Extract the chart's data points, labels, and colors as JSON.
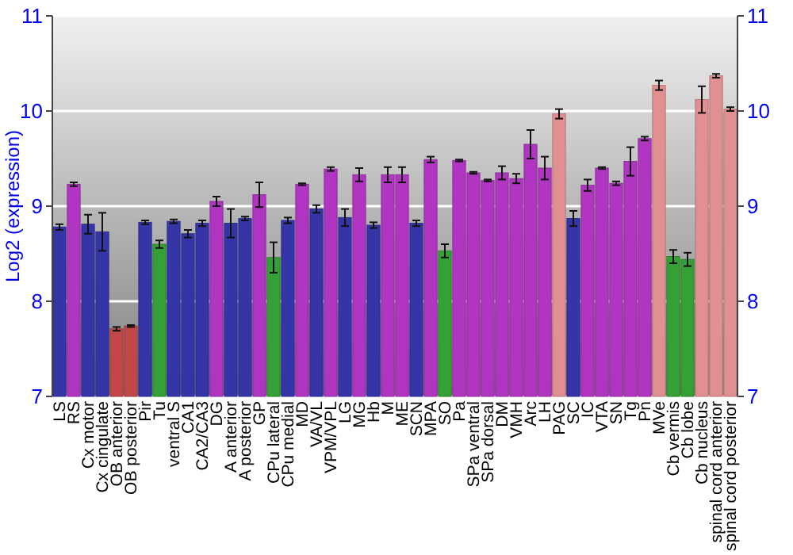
{
  "chart_data": {
    "type": "bar",
    "ylabel": "Log2 (expression)",
    "categories": [
      "LS",
      "RS",
      "Cx motor",
      "Cx cingulate",
      "OB anterior",
      "OB posterior",
      "Pir",
      "Tu",
      "ventral S",
      "CA1",
      "CA2/CA3",
      "DG",
      "A anterior",
      "A posterior",
      "GP",
      "CPu lateral",
      "CPu medial",
      "MD",
      "VA/VL",
      "VPM/VPL",
      "LG",
      "MG",
      "Hb",
      "M",
      "ME",
      "SCN",
      "MPA",
      "SO",
      "Pa",
      "SPa ventral",
      "SPa dorsal",
      "DM",
      "VMH",
      "Arc",
      "LH",
      "PAG",
      "SC",
      "IC",
      "VTA",
      "SN",
      "Tg",
      "Pn",
      "MVe",
      "Cb vermis",
      "Cb lobe",
      "Cb nucleus",
      "spinal cord anterior",
      "spinal cord posterior"
    ],
    "values": [
      8.78,
      9.23,
      8.81,
      8.73,
      7.71,
      7.74,
      8.83,
      8.6,
      8.84,
      8.71,
      8.82,
      9.05,
      8.82,
      8.87,
      9.12,
      8.46,
      8.85,
      9.23,
      8.97,
      9.39,
      8.88,
      9.33,
      8.8,
      9.33,
      9.33,
      8.82,
      9.49,
      8.53,
      9.48,
      9.35,
      9.27,
      9.35,
      9.29,
      9.65,
      9.4,
      9.97,
      8.87,
      9.22,
      9.4,
      9.24,
      9.47,
      9.71,
      10.27,
      8.47,
      8.44,
      10.12,
      10.37,
      10.02
    ],
    "errors": [
      0.03,
      0.02,
      0.1,
      0.2,
      0.02,
      0.01,
      0.02,
      0.04,
      0.02,
      0.04,
      0.03,
      0.05,
      0.15,
      0.02,
      0.13,
      0.16,
      0.03,
      0.01,
      0.04,
      0.02,
      0.09,
      0.07,
      0.03,
      0.08,
      0.08,
      0.03,
      0.03,
      0.07,
      0.01,
      0.01,
      0.01,
      0.07,
      0.05,
      0.15,
      0.12,
      0.05,
      0.08,
      0.06,
      0.01,
      0.02,
      0.15,
      0.02,
      0.05,
      0.07,
      0.07,
      0.14,
      0.02,
      0.02
    ],
    "colors": [
      "#3535a8",
      "#b035c0",
      "#3535a8",
      "#3535a8",
      "#c04848",
      "#c04848",
      "#3535a8",
      "#35a035",
      "#3535a8",
      "#3535a8",
      "#3535a8",
      "#b035c0",
      "#3535a8",
      "#3535a8",
      "#b035c0",
      "#35a035",
      "#3535a8",
      "#b035c0",
      "#3535a8",
      "#b035c0",
      "#3535a8",
      "#b035c0",
      "#3535a8",
      "#b035c0",
      "#b035c0",
      "#3535a8",
      "#b035c0",
      "#35a035",
      "#b035c0",
      "#b035c0",
      "#b035c0",
      "#b035c0",
      "#b035c0",
      "#b035c0",
      "#b035c0",
      "#e09090",
      "#3535a8",
      "#b035c0",
      "#b035c0",
      "#b035c0",
      "#b035c0",
      "#b035c0",
      "#e09090",
      "#35a035",
      "#35a035",
      "#e09090",
      "#e09090",
      "#e09090"
    ],
    "ylim": [
      7,
      11
    ],
    "yticks": [
      7,
      8,
      9,
      10,
      11
    ],
    "y2lim": [
      7,
      11
    ],
    "y2ticks": [
      7,
      8,
      9,
      10,
      11
    ],
    "grid": "y"
  }
}
